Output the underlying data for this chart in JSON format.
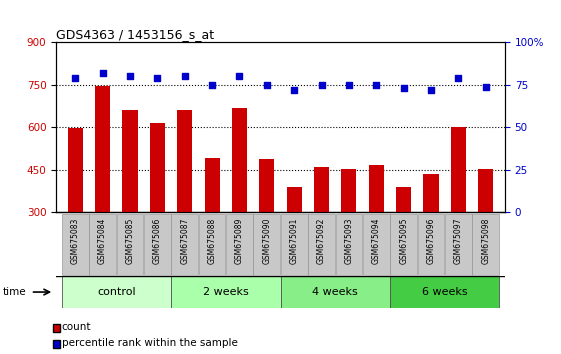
{
  "title": "GDS4363 / 1453156_s_at",
  "samples": [
    "GSM675083",
    "GSM675084",
    "GSM675085",
    "GSM675086",
    "GSM675087",
    "GSM675088",
    "GSM675089",
    "GSM675090",
    "GSM675091",
    "GSM675092",
    "GSM675093",
    "GSM675094",
    "GSM675095",
    "GSM675096",
    "GSM675097",
    "GSM675098"
  ],
  "counts": [
    597,
    748,
    660,
    614,
    660,
    493,
    668,
    488,
    388,
    460,
    453,
    468,
    388,
    435,
    600,
    453
  ],
  "percentiles": [
    79,
    82,
    80,
    79,
    80,
    75,
    80,
    75,
    72,
    75,
    75,
    75,
    73,
    72,
    79,
    74
  ],
  "bar_color": "#cc0000",
  "dot_color": "#0000cc",
  "ylim_left": [
    300,
    900
  ],
  "ylim_right": [
    0,
    100
  ],
  "yticks_left": [
    300,
    450,
    600,
    750,
    900
  ],
  "yticks_right": [
    0,
    25,
    50,
    75,
    100
  ],
  "groups": [
    {
      "label": "control",
      "start": 0,
      "end": 4
    },
    {
      "label": "2 weeks",
      "start": 4,
      "end": 8
    },
    {
      "label": "4 weeks",
      "start": 8,
      "end": 12
    },
    {
      "label": "6 weeks",
      "start": 12,
      "end": 16
    }
  ],
  "group_colors": [
    "#ccffcc",
    "#aaffaa",
    "#88ee88",
    "#44cc44"
  ],
  "time_label": "time",
  "legend_count_label": "count",
  "legend_pct_label": "percentile rank within the sample",
  "bg_color": "#ffffff",
  "xtick_bg_color": "#c8c8c8",
  "dotted_yvals": [
    450,
    600,
    750
  ]
}
